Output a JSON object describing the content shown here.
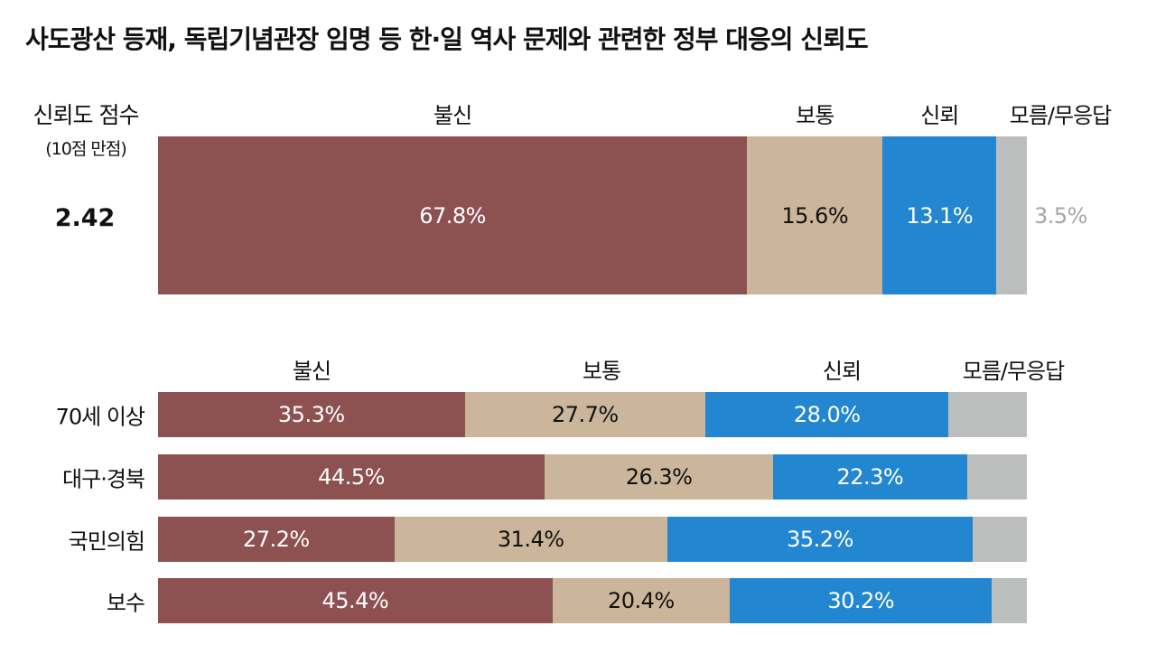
{
  "title": "사도광산 등재, 독립기념관장 임명 등 한·일 역사 문제와 관련한 정부 대응의 신뢰도",
  "colors": {
    "distrust": "#8e5152",
    "normal": "#cbb59b",
    "trust": "#2386d0",
    "unknown": "#bcbdbd",
    "unknown_text": "#a6a6a6"
  },
  "score": {
    "label_line1": "신뢰도 점수",
    "label_line2": "(10점 만점)",
    "value": "2.42"
  },
  "chart_data": [
    {
      "type": "bar",
      "orientation": "horizontal",
      "stacked": true,
      "categories_header": [
        "불신",
        "보통",
        "신뢰",
        "모름/무응답"
      ],
      "series": [
        {
          "name": "불신",
          "values": [
            67.8
          ],
          "labels": [
            "67.8%"
          ]
        },
        {
          "name": "보통",
          "values": [
            15.6
          ],
          "labels": [
            "15.6%"
          ]
        },
        {
          "name": "신뢰",
          "values": [
            13.1
          ],
          "labels": [
            "13.1%"
          ]
        },
        {
          "name": "모름/무응답",
          "values": [
            3.5
          ],
          "labels": [
            "3.5%"
          ]
        }
      ]
    },
    {
      "type": "bar",
      "orientation": "horizontal",
      "stacked": true,
      "categories_header": [
        "불신",
        "보통",
        "신뢰",
        "모름/무응답"
      ],
      "categories": [
        "70세 이상",
        "대구·경북",
        "국민의힘",
        "보수"
      ],
      "series": [
        {
          "name": "불신",
          "values": [
            35.3,
            44.5,
            27.2,
            45.4
          ],
          "labels": [
            "35.3%",
            "44.5%",
            "27.2%",
            "45.4%"
          ]
        },
        {
          "name": "보통",
          "values": [
            27.7,
            26.3,
            31.4,
            20.4
          ],
          "labels": [
            "27.7%",
            "26.3%",
            "31.4%",
            "20.4%"
          ]
        },
        {
          "name": "신뢰",
          "values": [
            28.0,
            22.3,
            35.2,
            30.2
          ],
          "labels": [
            "28.0%",
            "22.3%",
            "35.2%",
            "30.2%"
          ]
        },
        {
          "name": "모름/무응답",
          "values": [
            9.0,
            6.9,
            6.2,
            4.0
          ],
          "labels": [
            "",
            "",
            "",
            ""
          ]
        }
      ]
    }
  ]
}
